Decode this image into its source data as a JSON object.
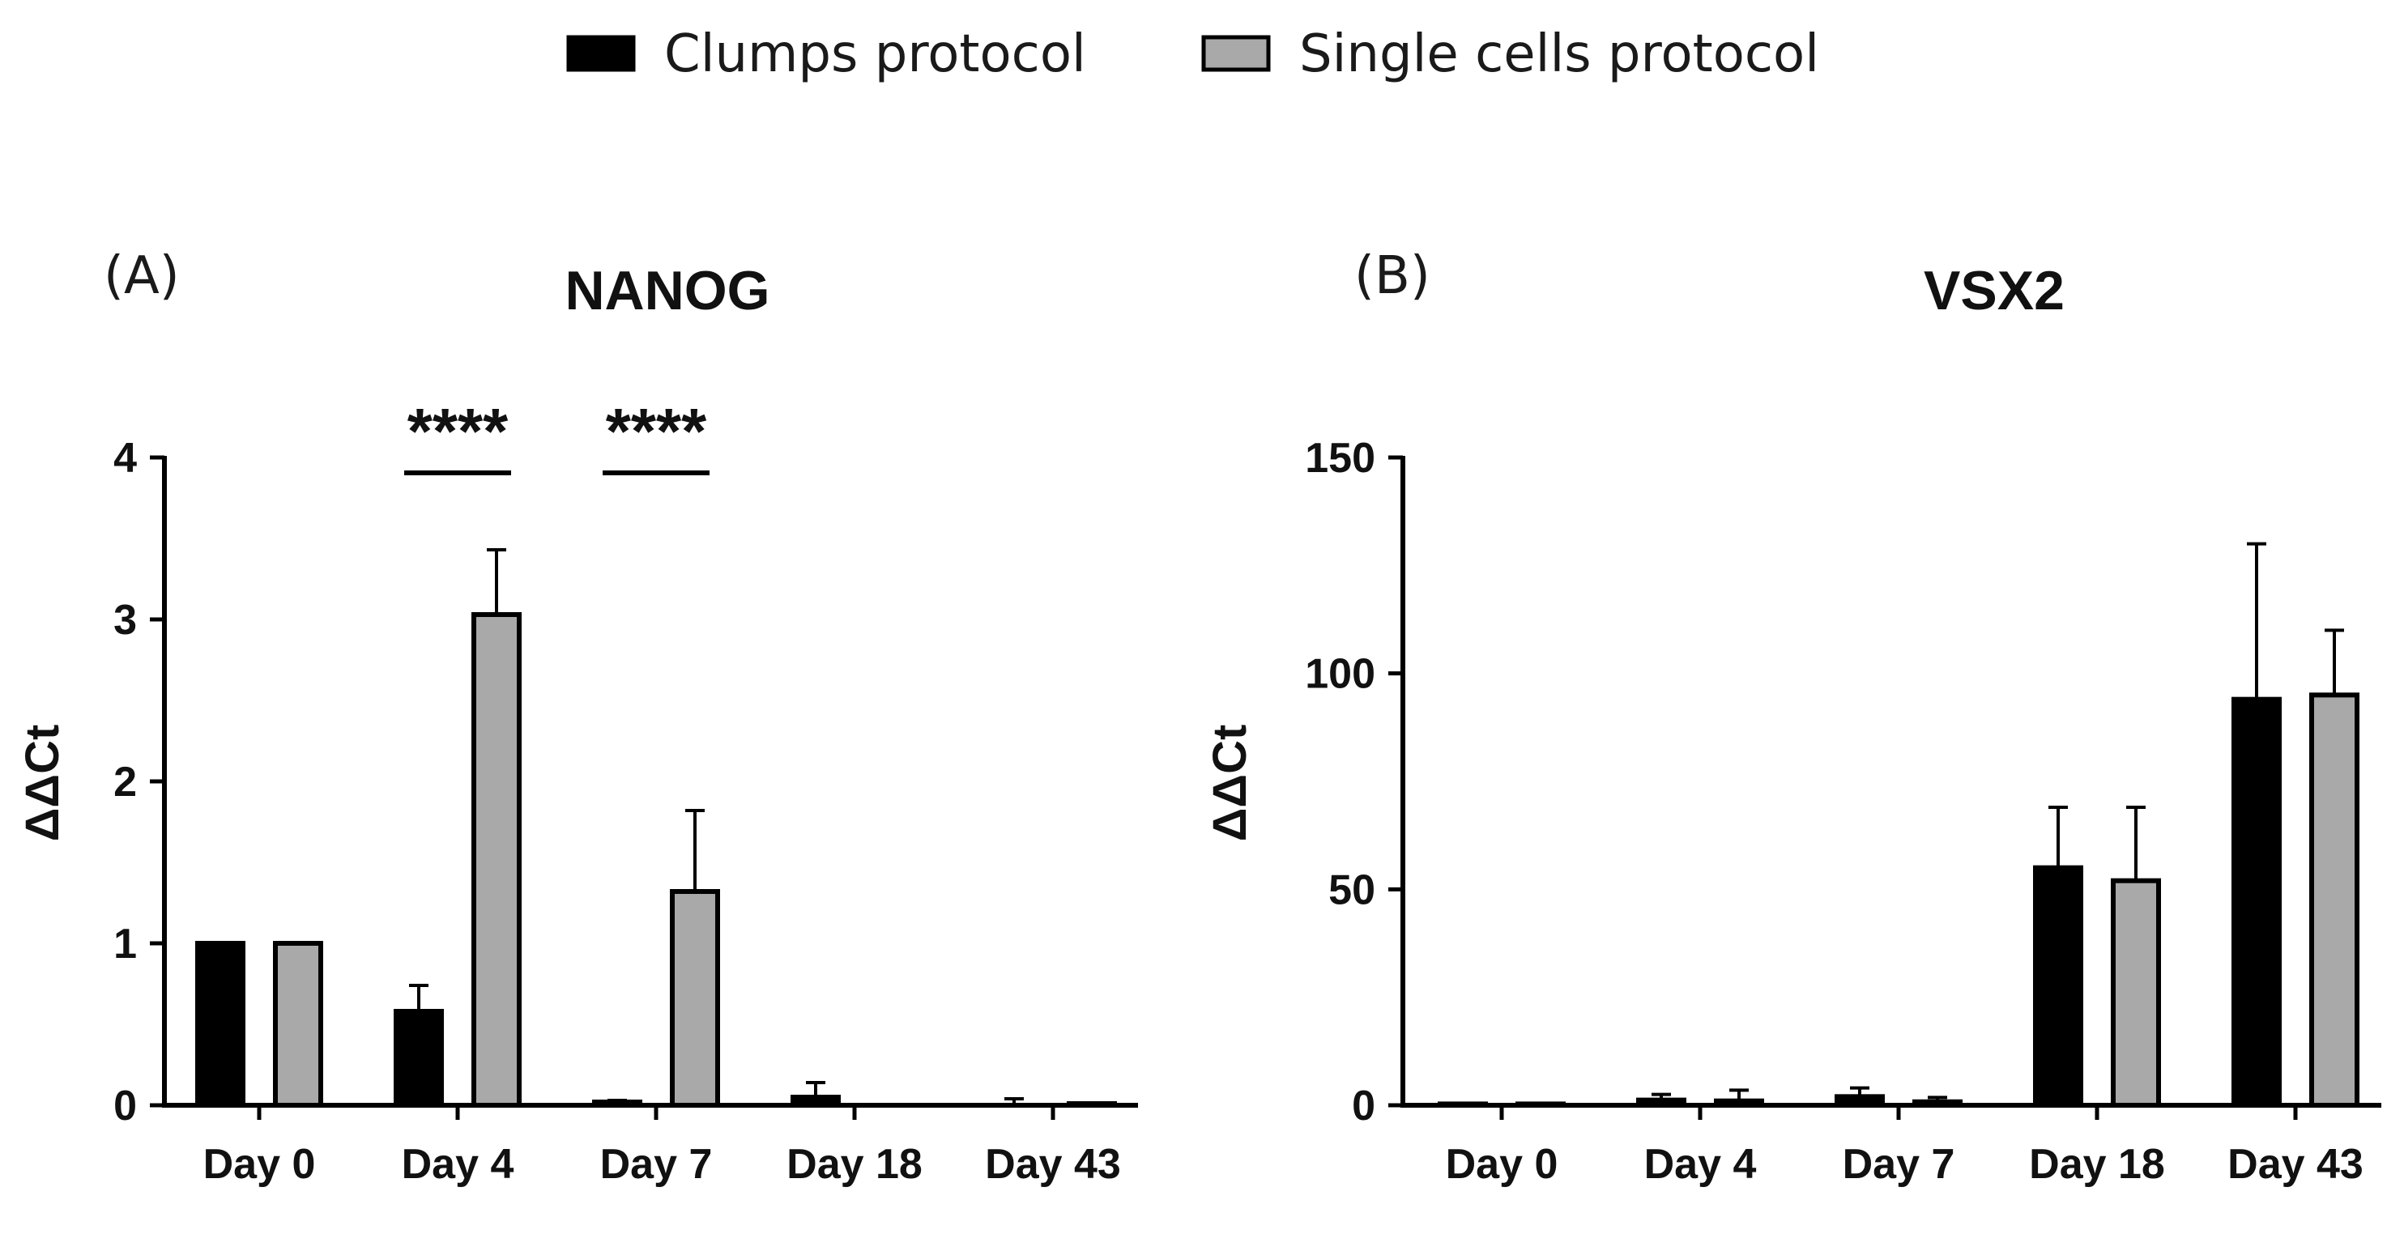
{
  "legend": [
    {
      "label": "Clumps protocol",
      "color": "#000000"
    },
    {
      "label": "Single cells protocol",
      "color": "#a9a9a9"
    }
  ],
  "chart_data": [
    {
      "type": "bar",
      "panel_label": "(A)",
      "title": "NANOG",
      "xlabel": "",
      "ylabel": "ΔΔCt",
      "ylim": [
        0,
        4
      ],
      "yticks": [
        0,
        1,
        2,
        3,
        4
      ],
      "categories": [
        "Day 0",
        "Day 4",
        "Day 7",
        "Day 18",
        "Day 43"
      ],
      "series": [
        {
          "name": "Clumps protocol",
          "values": [
            1.0,
            0.58,
            0.02,
            0.05,
            0.0
          ],
          "errors": [
            0.0,
            0.16,
            0.01,
            0.09,
            0.04
          ]
        },
        {
          "name": "Single cells protocol",
          "values": [
            1.0,
            3.03,
            1.32,
            0.0,
            0.01
          ],
          "errors": [
            0.0,
            0.4,
            0.5,
            0.0,
            0.0
          ]
        }
      ],
      "significance": [
        {
          "category": "Day 4",
          "label": "****"
        },
        {
          "category": "Day 7",
          "label": "****"
        }
      ]
    },
    {
      "type": "bar",
      "panel_label": "(B)",
      "title": "VSX2",
      "xlabel": "",
      "ylabel": "ΔΔCt",
      "ylim": [
        0,
        150
      ],
      "yticks": [
        0,
        50,
        100,
        150
      ],
      "categories": [
        "Day 0",
        "Day 4",
        "Day 7",
        "Day 18",
        "Day 43"
      ],
      "series": [
        {
          "name": "Clumps protocol",
          "values": [
            0.3,
            1.2,
            2.0,
            55,
            94
          ],
          "errors": [
            0.0,
            1.3,
            2.0,
            14,
            36
          ]
        },
        {
          "name": "Single cells protocol",
          "values": [
            0.3,
            1.0,
            0.8,
            52,
            95
          ],
          "errors": [
            0.0,
            2.5,
            1.0,
            17,
            15
          ]
        }
      ],
      "significance": []
    }
  ]
}
